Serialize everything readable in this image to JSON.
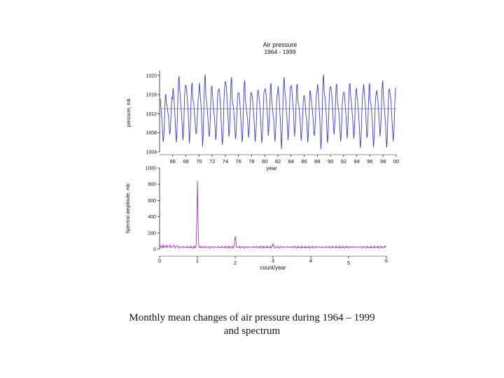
{
  "caption": {
    "line1": "Monthly mean changes of air pressure during 1964 – 1999",
    "line2": "and spectrum"
  },
  "colors": {
    "pressure_series": "#3b3fc4",
    "spectrum_series": "#a33bb8",
    "mean_line": "#8a8a8a",
    "axis": "#222222"
  },
  "chart_data": [
    {
      "type": "line",
      "title": "Air pressure",
      "subtitle": "1964 - 1999",
      "xlabel": "year",
      "ylabel": "pressure, mb",
      "xlim": [
        1964,
        2000
      ],
      "ylim": [
        1004,
        1021
      ],
      "yticks": [
        1004,
        1008,
        1012,
        1016,
        1020
      ],
      "ytick_labels": [
        "1004",
        "1008",
        "1012",
        "1016",
        "1020"
      ],
      "xticks": [
        1966,
        1968,
        1970,
        1972,
        1974,
        1976,
        1978,
        1980,
        1982,
        1984,
        1986,
        1988,
        1990,
        1992,
        1994,
        1996,
        1998,
        2000
      ],
      "xtick_labels": [
        "66",
        "68",
        "70",
        "72",
        "74",
        "76",
        "78",
        "80",
        "82",
        "84",
        "86",
        "88",
        "90",
        "92",
        "94",
        "96",
        "98",
        "00"
      ],
      "reference_line": 1013,
      "x_start": 1964,
      "months": 432,
      "seasonal_pattern": [
        1015.8,
        1015.1,
        1014.0,
        1012.6,
        1011.3,
        1009.2,
        1007.4,
        1008.6,
        1010.9,
        1014.2,
        1016.4,
        1016.8
      ],
      "annual_peaks": [
        1016.2,
        1015.4,
        1019.5,
        1017.6,
        1019.0,
        1016.0,
        1020.7,
        1017.3,
        1016.6,
        1018.0,
        1019.8,
        1016.4,
        1018.4,
        1016.0,
        1016.7,
        1017.2,
        1018.8,
        1016.0,
        1019.3,
        1017.4,
        1018.6,
        1015.8,
        1017.0,
        1016.5,
        1019.6,
        1017.8,
        1018.6,
        1016.3,
        1018.2,
        1017.1,
        1016.4,
        1018.9,
        1016.6,
        1018.4,
        1016.8,
        1017.4
      ],
      "annual_troughs": [
        1005.6,
        1007.2,
        1005.3,
        1006.8,
        1006.2,
        1007.4,
        1005.0,
        1006.6,
        1007.1,
        1005.8,
        1007.0,
        1006.1,
        1005.4,
        1007.6,
        1006.5,
        1005.9,
        1007.2,
        1006.0,
        1005.1,
        1006.9,
        1007.4,
        1006.2,
        1005.7,
        1007.1,
        1004.9,
        1006.4,
        1007.0,
        1005.6,
        1006.6,
        1007.2,
        1005.2,
        1006.3,
        1004.6,
        1006.8,
        1005.4,
        1006.5
      ]
    },
    {
      "type": "line",
      "title": "",
      "xlabel": "count/year",
      "ylabel": "Spectral amplitude, mb",
      "xlim": [
        0,
        6
      ],
      "ylim": [
        0,
        1000
      ],
      "yticks": [
        0,
        200,
        400,
        600,
        800,
        1000
      ],
      "ytick_labels": [
        "0",
        "200",
        "400",
        "600",
        "800",
        "1000"
      ],
      "xticks": [
        0,
        1,
        2,
        3,
        4,
        5,
        6
      ],
      "xtick_labels": [
        "0",
        "1",
        "2",
        "3",
        "4",
        "5",
        "6"
      ],
      "peaks": [
        {
          "x": 1.0,
          "y": 840
        },
        {
          "x": 2.0,
          "y": 175
        },
        {
          "x": 3.0,
          "y": 70
        },
        {
          "x": 6.0,
          "y": 55
        }
      ],
      "background_level": 35
    }
  ]
}
